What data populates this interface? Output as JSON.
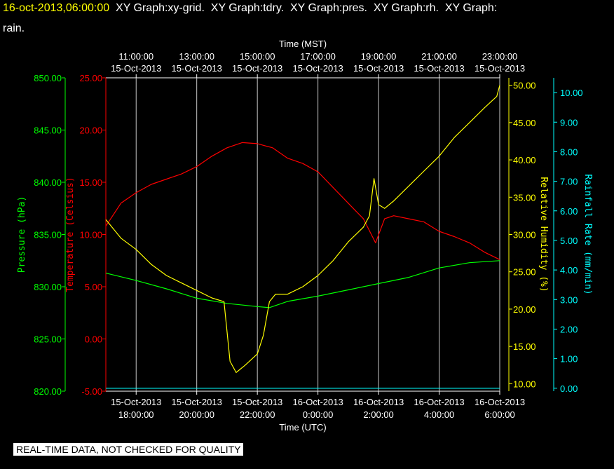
{
  "title": {
    "timestamp": "16-oct-2013,06:00:00",
    "rest_line1": "  XY Graph:xy-grid.  XY Graph:tdry.  XY Graph:pres.  XY Graph:rh.  XY Graph:",
    "line2": "rain."
  },
  "quality_note": "REAL-TIME DATA, NOT CHECKED FOR QUALITY",
  "chart_data": {
    "type": "line",
    "top_axis": {
      "label": "Time (MST)",
      "ticks": [
        {
          "time": "11:00:00",
          "date": "15-Oct-2013"
        },
        {
          "time": "13:00:00",
          "date": "15-Oct-2013"
        },
        {
          "time": "15:00:00",
          "date": "15-Oct-2013"
        },
        {
          "time": "17:00:00",
          "date": "15-Oct-2013"
        },
        {
          "time": "19:00:00",
          "date": "15-Oct-2013"
        },
        {
          "time": "21:00:00",
          "date": "15-Oct-2013"
        },
        {
          "time": "23:00:00",
          "date": "15-Oct-2013"
        }
      ]
    },
    "bottom_axis": {
      "label": "Time (UTC)",
      "ticks": [
        {
          "date": "15-Oct-2013",
          "time": "18:00:00"
        },
        {
          "date": "15-Oct-2013",
          "time": "20:00:00"
        },
        {
          "date": "15-Oct-2013",
          "time": "22:00:00"
        },
        {
          "date": "16-Oct-2013",
          "time": "0:00:00"
        },
        {
          "date": "16-Oct-2013",
          "time": "2:00:00"
        },
        {
          "date": "16-Oct-2013",
          "time": "4:00:00"
        },
        {
          "date": "16-Oct-2013",
          "time": "6:00:00"
        }
      ],
      "range_hours_utc": [
        17.0,
        30.0
      ]
    },
    "grid": true,
    "y_axes": [
      {
        "id": "pres",
        "label": "Pressure (hPa)",
        "color": "#00ff00",
        "ylim": [
          820,
          850
        ],
        "ticks": [
          "820.00",
          "825.00",
          "830.00",
          "835.00",
          "840.00",
          "845.00",
          "850.00"
        ]
      },
      {
        "id": "tdry",
        "label": "Temperature (Celsius)",
        "color": "#ff0000",
        "ylim": [
          -5,
          25
        ],
        "ticks": [
          "-5.00",
          "0.00",
          "5.00",
          "10.00",
          "15.00",
          "20.00",
          "25.00"
        ]
      },
      {
        "id": "rh",
        "label": "Relative Humidity (%)",
        "color": "#ffff00",
        "ylim": [
          9,
          51
        ],
        "ticks": [
          "10.00",
          "15.00",
          "20.00",
          "25.00",
          "30.00",
          "35.00",
          "40.00",
          "45.00",
          "50.00"
        ]
      },
      {
        "id": "rain",
        "label": "Rainfall Rate (mm/min)",
        "color": "#00ffff",
        "ylim": [
          -0.1,
          10.5
        ],
        "ticks": [
          "0.00",
          "1.00",
          "2.00",
          "3.00",
          "4.00",
          "5.00",
          "6.00",
          "7.00",
          "8.00",
          "9.00",
          "10.00"
        ]
      }
    ],
    "series": [
      {
        "axis": "pres",
        "color": "#00ff00",
        "x": [
          17.0,
          18.0,
          19.0,
          20.0,
          21.0,
          22.0,
          22.4,
          23.0,
          24.0,
          25.0,
          26.0,
          27.0,
          28.0,
          29.0,
          30.0
        ],
        "y": [
          831.3,
          830.6,
          829.8,
          828.9,
          828.4,
          828.1,
          828.0,
          828.6,
          829.1,
          829.7,
          830.3,
          830.9,
          831.8,
          832.3,
          832.5
        ]
      },
      {
        "axis": "tdry",
        "color": "#ff0000",
        "x": [
          17.0,
          17.5,
          18.0,
          18.5,
          19.0,
          19.5,
          20.0,
          20.5,
          21.0,
          21.5,
          22.0,
          22.5,
          23.0,
          23.5,
          24.0,
          24.5,
          25.0,
          25.5,
          25.9,
          26.2,
          26.5,
          27.0,
          27.5,
          28.0,
          28.5,
          29.0,
          29.5,
          30.0
        ],
        "y": [
          10.8,
          13.0,
          14.0,
          14.8,
          15.3,
          15.8,
          16.5,
          17.5,
          18.3,
          18.8,
          18.7,
          18.3,
          17.3,
          16.8,
          16.0,
          14.5,
          13.0,
          11.5,
          9.2,
          11.5,
          11.8,
          11.5,
          11.2,
          10.3,
          9.8,
          9.2,
          8.3,
          7.6
        ]
      },
      {
        "axis": "rh",
        "color": "#ffff00",
        "x": [
          17.0,
          17.5,
          18.0,
          18.5,
          19.0,
          19.5,
          20.0,
          20.5,
          20.9,
          21.1,
          21.3,
          21.6,
          22.0,
          22.2,
          22.4,
          22.6,
          23.0,
          23.5,
          24.0,
          24.5,
          25.0,
          25.5,
          25.7,
          25.85,
          26.0,
          26.2,
          26.5,
          27.0,
          27.5,
          28.0,
          28.5,
          29.0,
          29.5,
          29.9,
          30.0
        ],
        "y": [
          32.0,
          29.5,
          28.0,
          26.0,
          24.5,
          23.5,
          22.5,
          21.5,
          21.0,
          13.0,
          11.5,
          12.5,
          14.0,
          16.5,
          21.0,
          22.0,
          22.0,
          23.0,
          24.5,
          26.5,
          29.0,
          31.0,
          32.5,
          37.5,
          34.0,
          33.5,
          34.5,
          36.5,
          38.5,
          40.5,
          43.0,
          45.0,
          47.0,
          48.5,
          50.0
        ]
      },
      {
        "axis": "rain",
        "color": "#00ffff",
        "x": [
          17.0,
          30.0
        ],
        "y": [
          0.0,
          0.0
        ]
      }
    ]
  }
}
